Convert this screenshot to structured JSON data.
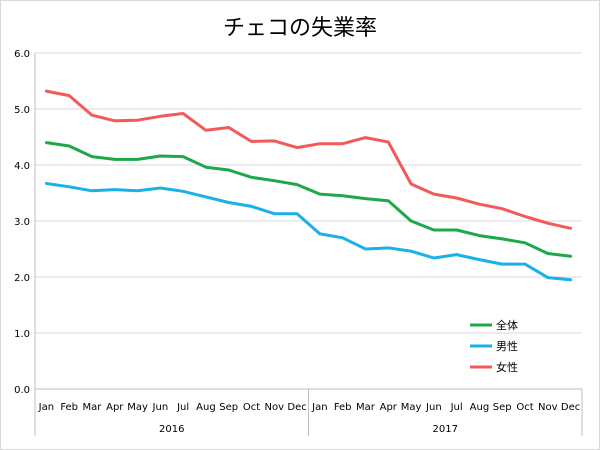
{
  "chart_data": {
    "type": "line",
    "title": "チェコの失業率",
    "xlabel": "",
    "ylabel": "",
    "ylim": [
      0,
      6
    ],
    "yticks": [
      "0.0",
      "1.0",
      "2.0",
      "3.0",
      "4.0",
      "5.0",
      "6.0"
    ],
    "categories": [
      "Jan",
      "Feb",
      "Mar",
      "Apr",
      "May",
      "Jun",
      "Jul",
      "Aug",
      "Sep",
      "Oct",
      "Nov",
      "Dec",
      "Jan",
      "Feb",
      "Mar",
      "Apr",
      "May",
      "Jun",
      "Jul",
      "Aug",
      "Sep",
      "Oct",
      "Nov",
      "Dec"
    ],
    "year_groups": [
      {
        "label": "2016",
        "count": 12
      },
      {
        "label": "2017",
        "count": 12
      }
    ],
    "grid": true,
    "legend_position": "bottom-right",
    "series": [
      {
        "name": "全体",
        "color": "#1ea84a",
        "values": [
          4.4,
          4.34,
          4.15,
          4.1,
          4.1,
          4.16,
          4.15,
          3.96,
          3.91,
          3.78,
          3.72,
          3.65,
          3.48,
          3.45,
          3.4,
          3.36,
          3.0,
          2.84,
          2.84,
          2.74,
          2.68,
          2.61,
          2.42,
          2.37
        ]
      },
      {
        "name": "男性",
        "color": "#1ab0e8",
        "values": [
          3.67,
          3.61,
          3.54,
          3.56,
          3.54,
          3.59,
          3.53,
          3.43,
          3.33,
          3.26,
          3.13,
          3.13,
          2.77,
          2.7,
          2.5,
          2.52,
          2.46,
          2.34,
          2.4,
          2.31,
          2.23,
          2.23,
          1.99,
          1.95
        ]
      },
      {
        "name": "女性",
        "color": "#f25a5a",
        "values": [
          5.32,
          5.24,
          4.89,
          4.79,
          4.8,
          4.87,
          4.92,
          4.62,
          4.67,
          4.42,
          4.43,
          4.31,
          4.38,
          4.38,
          4.49,
          4.41,
          3.66,
          3.48,
          3.41,
          3.3,
          3.22,
          3.08,
          2.96,
          2.87
        ]
      }
    ]
  }
}
